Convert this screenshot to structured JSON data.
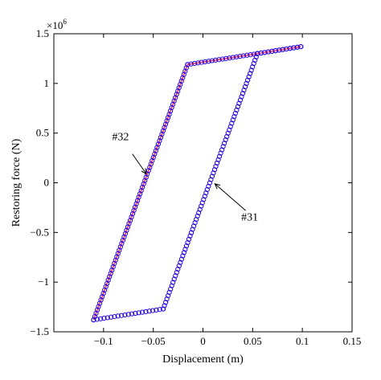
{
  "chart_data": {
    "type": "scatter",
    "xlabel": "Displacement (m)",
    "ylabel": "Restoring force (N)",
    "y_multiplier": "×10",
    "y_multiplier_exp": "6",
    "xlim": [
      -0.15,
      0.15
    ],
    "ylim": [
      -1.5,
      1.5
    ],
    "x_ticks": [
      -0.1,
      -0.05,
      0,
      0.05,
      0.1,
      0.15
    ],
    "x_tick_labels": [
      "−0.1",
      "−0.05",
      "0",
      "0.05",
      "0.1",
      "0.15"
    ],
    "y_ticks": [
      -1.5,
      -1,
      -0.5,
      0,
      0.5,
      1,
      1.5
    ],
    "y_tick_labels": [
      "−1.5",
      "−1",
      "−0.5",
      "0",
      "0.5",
      "1",
      "1.5"
    ],
    "grid": false,
    "series": [
      {
        "color": "#ff3355",
        "marker": "line",
        "vertices": [
          [
            -0.11,
            -1.38
          ],
          [
            -0.0155,
            1.19
          ],
          [
            0.0548,
            1.3
          ],
          [
            0.0985,
            1.37
          ]
        ]
      },
      {
        "color": "#2200dd",
        "marker": "circle",
        "vertices": [
          [
            0.0985,
            1.37
          ],
          [
            0.0548,
            1.3
          ],
          [
            -0.04,
            -1.27
          ],
          [
            -0.11,
            -1.38
          ]
        ]
      },
      {
        "color": "#2200dd",
        "marker": "circle",
        "vertices": [
          [
            -0.11,
            -1.38
          ],
          [
            -0.0155,
            1.19
          ],
          [
            0.0548,
            1.3
          ],
          [
            0.0985,
            1.37
          ]
        ]
      }
    ],
    "annotations": [
      {
        "text": "#32",
        "text_at": [
          -0.083,
          0.43
        ],
        "arrow_from": [
          -0.071,
          0.29
        ],
        "arrow_to": [
          -0.057,
          0.09
        ]
      },
      {
        "text": "#31",
        "text_at": [
          0.047,
          -0.38
        ],
        "arrow_from": [
          0.043,
          -0.28
        ],
        "arrow_to": [
          0.012,
          -0.01
        ]
      }
    ]
  }
}
